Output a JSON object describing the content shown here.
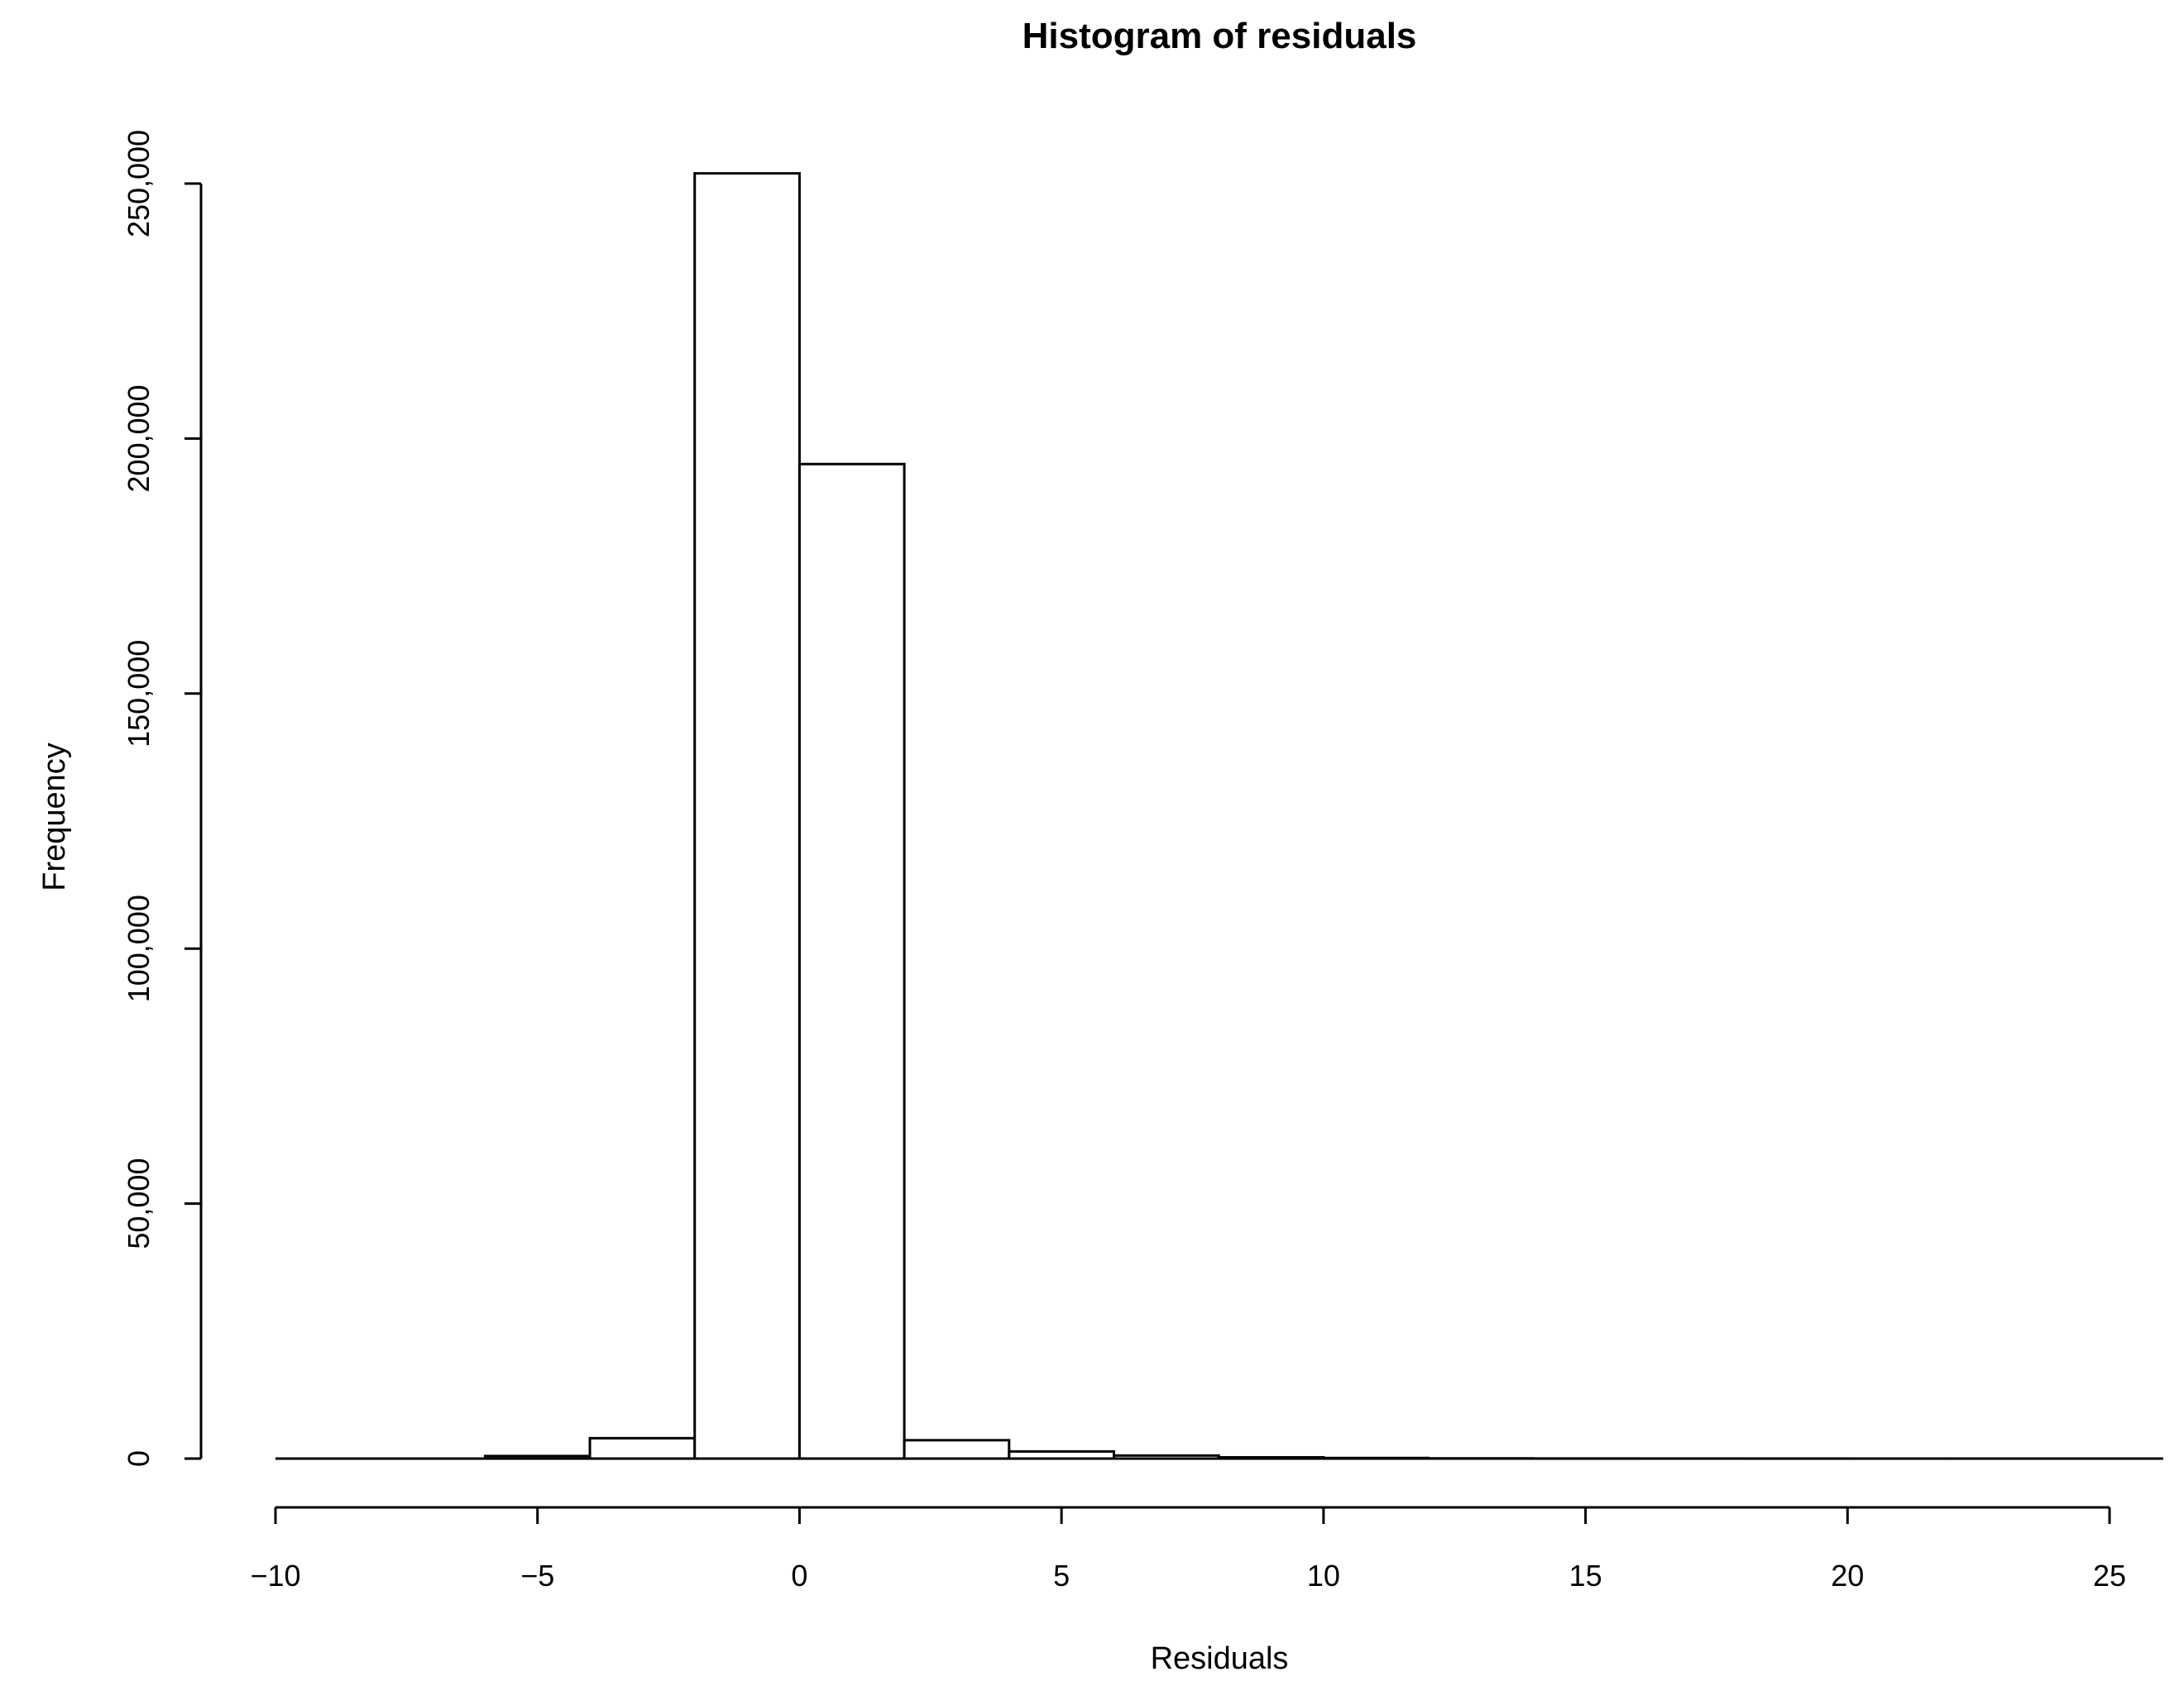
{
  "chart_data": {
    "type": "bar",
    "title": "Histogram of residuals",
    "xlabel": "Residuals",
    "ylabel": "Frequency",
    "bins": [
      {
        "from": -10,
        "to": -8,
        "count": 0
      },
      {
        "from": -8,
        "to": -6,
        "count": 0
      },
      {
        "from": -6,
        "to": -4,
        "count": 500
      },
      {
        "from": -4,
        "to": -2,
        "count": 4000
      },
      {
        "from": -2,
        "to": 0,
        "count": 252000
      },
      {
        "from": 0,
        "to": 2,
        "count": 195000
      },
      {
        "from": 2,
        "to": 4,
        "count": 3600
      },
      {
        "from": 4,
        "to": 6,
        "count": 1400
      },
      {
        "from": 6,
        "to": 8,
        "count": 600
      },
      {
        "from": 8,
        "to": 10,
        "count": 250
      },
      {
        "from": 10,
        "to": 12,
        "count": 120
      },
      {
        "from": 12,
        "to": 14,
        "count": 40
      },
      {
        "from": 14,
        "to": 16,
        "count": 15
      },
      {
        "from": 16,
        "to": 18,
        "count": 8
      },
      {
        "from": 18,
        "to": 20,
        "count": 4
      },
      {
        "from": 20,
        "to": 22,
        "count": 2
      },
      {
        "from": 22,
        "to": 24,
        "count": 1
      },
      {
        "from": 24,
        "to": 26,
        "count": 1
      }
    ],
    "xlim": [
      -10,
      26
    ],
    "ylim": [
      0,
      250000
    ],
    "x_ticks": [
      -10,
      -5,
      0,
      5,
      10,
      15,
      20,
      25
    ],
    "x_tick_labels": [
      "−10",
      "−5",
      "0",
      "5",
      "10",
      "15",
      "20",
      "25"
    ],
    "y_ticks": [
      0,
      50000,
      100000,
      150000,
      200000,
      250000
    ],
    "y_tick_labels": [
      "0",
      "50,000",
      "100,000",
      "150,000",
      "200,000",
      "250,000"
    ],
    "grid": false,
    "legend": "none"
  }
}
